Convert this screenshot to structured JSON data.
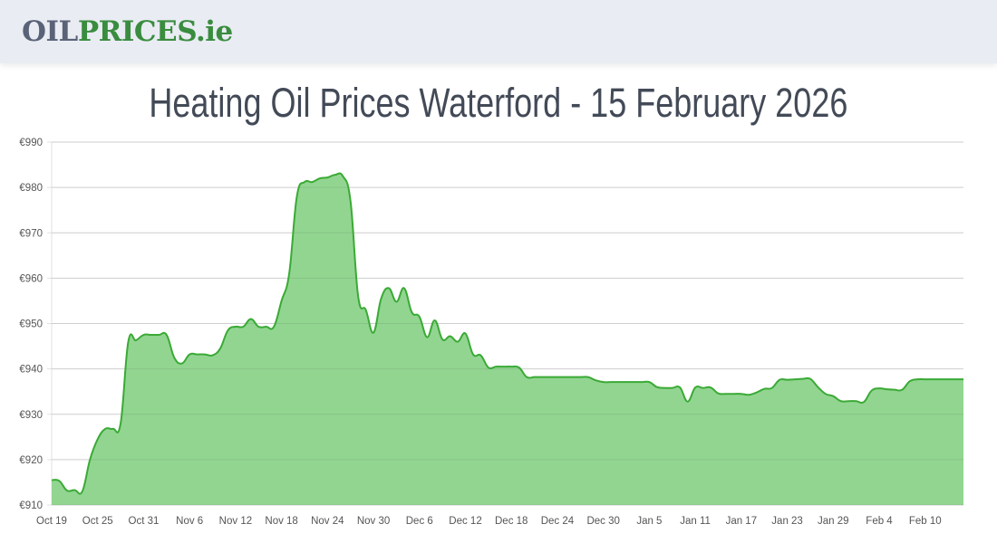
{
  "header": {
    "logo_part1": "OIL",
    "logo_part2": "PRICES.ie"
  },
  "page_title": "Heating Oil Prices Waterford - 15 February 2026",
  "colors": {
    "line": "#3aaa35",
    "fill": "#92d591",
    "grid": "#e0e0e0",
    "logo_grey": "#5a6278",
    "logo_green": "#3a8c3f"
  },
  "chart_data": {
    "type": "area",
    "title": "",
    "xlabel": "",
    "ylabel": "",
    "ylim": [
      910,
      990
    ],
    "grid": true,
    "y_ticks": [
      "€910",
      "€920",
      "€930",
      "€940",
      "€950",
      "€960",
      "€970",
      "€980",
      "€990"
    ],
    "x_ticks": [
      "Oct 19",
      "Oct 25",
      "Oct 31",
      "Nov 6",
      "Nov 12",
      "Nov 18",
      "Nov 24",
      "Nov 30",
      "Dec 6",
      "Dec 12",
      "Dec 18",
      "Dec 24",
      "Dec 30",
      "Jan 5",
      "Jan 11",
      "Jan 17",
      "Jan 23",
      "Jan 29",
      "Feb 4",
      "Feb 10"
    ],
    "x": [
      "2025-10-19",
      "2025-10-20",
      "2025-10-21",
      "2025-10-22",
      "2025-10-23",
      "2025-10-24",
      "2025-10-25",
      "2025-10-26",
      "2025-10-27",
      "2025-10-28",
      "2025-10-29",
      "2025-10-30",
      "2025-10-31",
      "2025-11-01",
      "2025-11-02",
      "2025-11-03",
      "2025-11-04",
      "2025-11-05",
      "2025-11-06",
      "2025-11-07",
      "2025-11-08",
      "2025-11-09",
      "2025-11-10",
      "2025-11-11",
      "2025-11-12",
      "2025-11-13",
      "2025-11-14",
      "2025-11-15",
      "2025-11-16",
      "2025-11-17",
      "2025-11-18",
      "2025-11-19",
      "2025-11-20",
      "2025-11-21",
      "2025-11-22",
      "2025-11-23",
      "2025-11-24",
      "2025-11-25",
      "2025-11-26",
      "2025-11-27",
      "2025-11-28",
      "2025-11-29",
      "2025-11-30",
      "2025-12-01",
      "2025-12-02",
      "2025-12-03",
      "2025-12-04",
      "2025-12-05",
      "2025-12-06",
      "2025-12-07",
      "2025-12-08",
      "2025-12-09",
      "2025-12-10",
      "2025-12-11",
      "2025-12-12",
      "2025-12-13",
      "2025-12-14",
      "2025-12-15",
      "2025-12-16",
      "2025-12-17",
      "2025-12-18",
      "2025-12-19",
      "2025-12-20",
      "2025-12-21",
      "2025-12-22",
      "2025-12-23",
      "2025-12-24",
      "2025-12-25",
      "2025-12-26",
      "2025-12-27",
      "2025-12-28",
      "2025-12-29",
      "2025-12-30",
      "2025-12-31",
      "2026-01-01",
      "2026-01-02",
      "2026-01-03",
      "2026-01-04",
      "2026-01-05",
      "2026-01-06",
      "2026-01-07",
      "2026-01-08",
      "2026-01-09",
      "2026-01-10",
      "2026-01-11",
      "2026-01-12",
      "2026-01-13",
      "2026-01-14",
      "2026-01-15",
      "2026-01-16",
      "2026-01-17",
      "2026-01-18",
      "2026-01-19",
      "2026-01-20",
      "2026-01-21",
      "2026-01-22",
      "2026-01-23",
      "2026-01-24",
      "2026-01-25",
      "2026-01-26",
      "2026-01-27",
      "2026-01-28",
      "2026-01-29",
      "2026-01-30",
      "2026-01-31",
      "2026-02-01",
      "2026-02-02",
      "2026-02-03",
      "2026-02-04",
      "2026-02-05",
      "2026-02-06",
      "2026-02-07",
      "2026-02-08",
      "2026-02-09",
      "2026-02-10",
      "2026-02-11",
      "2026-02-12",
      "2026-02-13",
      "2026-02-14",
      "2026-02-15"
    ],
    "series": [
      {
        "values": [
          915.5,
          915.3,
          913.2,
          913.3,
          913,
          920,
          924.5,
          926.8,
          926.8,
          928,
          946,
          946.3,
          947.5,
          947.5,
          947.5,
          947.5,
          942.5,
          941.2,
          943.2,
          943.2,
          943.2,
          943,
          944.5,
          948.5,
          949.3,
          949.3,
          951,
          949.3,
          949.3,
          949.3,
          955,
          961,
          978,
          981.2,
          981.2,
          982,
          982.2,
          982.8,
          982.5,
          977,
          956,
          953,
          948,
          955.5,
          957.8,
          954.8,
          957.8,
          952.5,
          951.5,
          947,
          950.7,
          946.5,
          947.2,
          946,
          947.8,
          943.2,
          943,
          940.3,
          940.5,
          940.5,
          940.5,
          940.3,
          938.2,
          938.2,
          938.2,
          938.2,
          938.2,
          938.2,
          938.2,
          938.2,
          938.2,
          937.5,
          937.1,
          937.1,
          937.1,
          937.1,
          937.1,
          937.1,
          937.1,
          936,
          935.8,
          935.8,
          935.9,
          932.8,
          935.9,
          935.8,
          935.9,
          934.6,
          934.5,
          934.5,
          934.5,
          934.3,
          934.8,
          935.6,
          935.8,
          937.6,
          937.6,
          937.7,
          937.8,
          937.8,
          936,
          934.5,
          934,
          932.9,
          932.9,
          932.9,
          932.7,
          935.2,
          935.7,
          935.5,
          935.4,
          935.4,
          937.3,
          937.7,
          937.7,
          937.7,
          937.7,
          937.7,
          937.7,
          937.7
        ]
      }
    ]
  }
}
